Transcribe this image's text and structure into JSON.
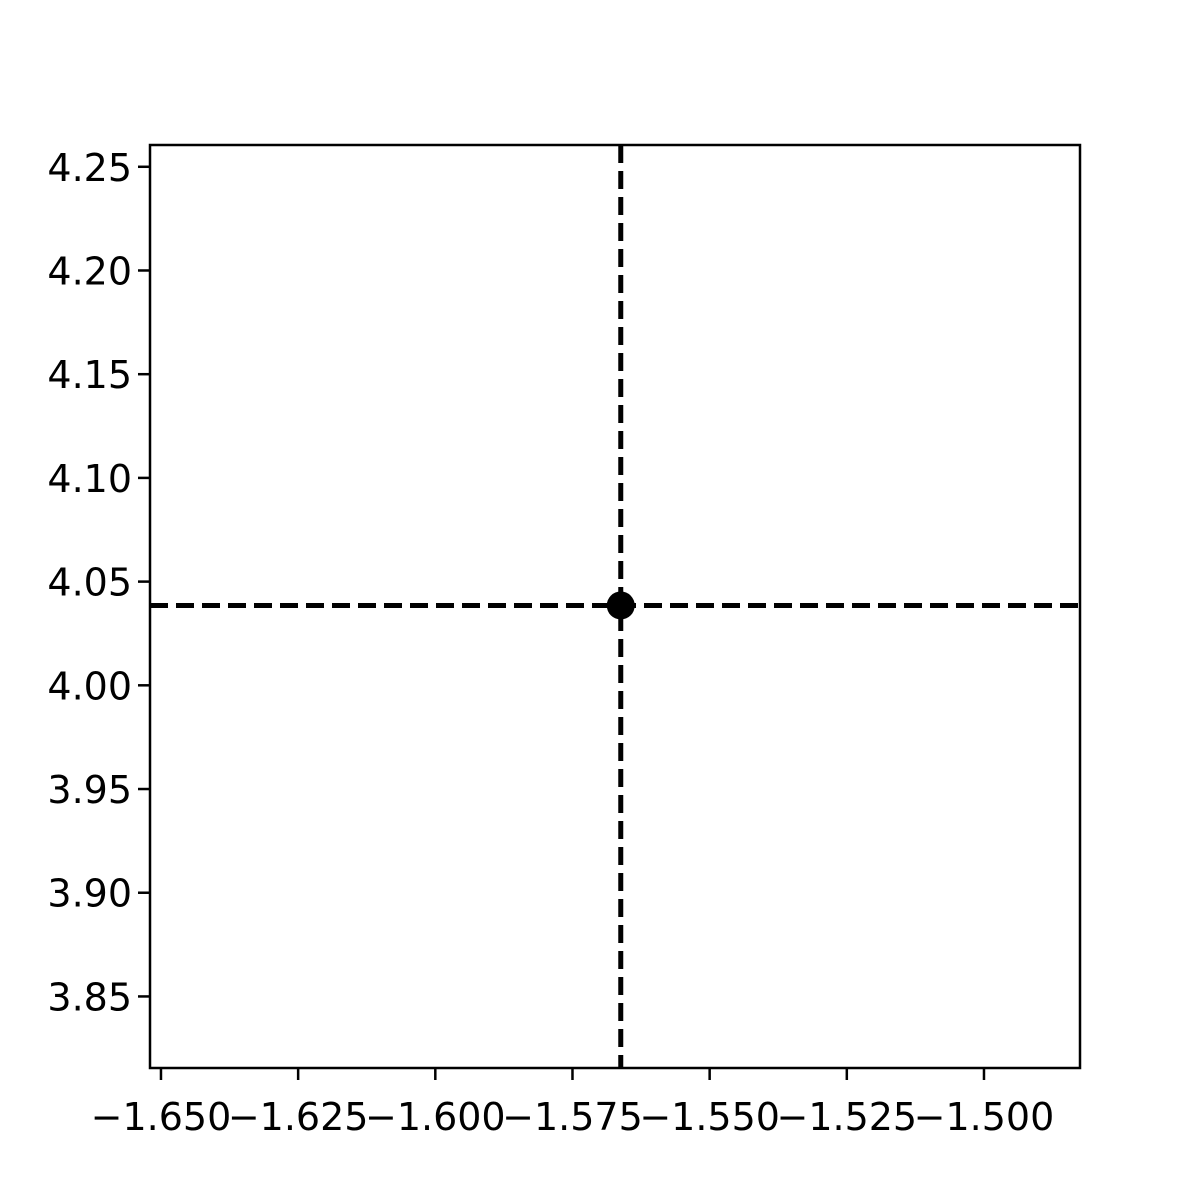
{
  "chart_data": {
    "type": "scatter",
    "title": "",
    "xlabel": "",
    "ylabel": "",
    "xlim": [
      -1.652,
      -1.4825
    ],
    "ylim": [
      3.8155,
      4.2605
    ],
    "x_ticks": [
      -1.65,
      -1.625,
      -1.6,
      -1.575,
      -1.55,
      -1.525,
      -1.5
    ],
    "x_tick_labels": [
      "−1.650",
      "−1.625",
      "−1.600",
      "−1.575",
      "−1.550",
      "−1.525",
      "−1.500"
    ],
    "y_ticks": [
      3.85,
      3.9,
      3.95,
      4.0,
      4.05,
      4.1,
      4.15,
      4.2,
      4.25
    ],
    "y_tick_labels": [
      "3.85",
      "3.90",
      "3.95",
      "4.00",
      "4.05",
      "4.10",
      "4.15",
      "4.20",
      "4.25"
    ],
    "points": [
      {
        "x": -1.5662,
        "y": 4.0385
      }
    ],
    "reference_lines": {
      "vertical_x": -1.5662,
      "horizontal_y": 4.0385,
      "style": "dashed"
    },
    "grid": false,
    "colors": {
      "marker": "#000000",
      "lines": "#000000",
      "axes": "#000000"
    }
  }
}
